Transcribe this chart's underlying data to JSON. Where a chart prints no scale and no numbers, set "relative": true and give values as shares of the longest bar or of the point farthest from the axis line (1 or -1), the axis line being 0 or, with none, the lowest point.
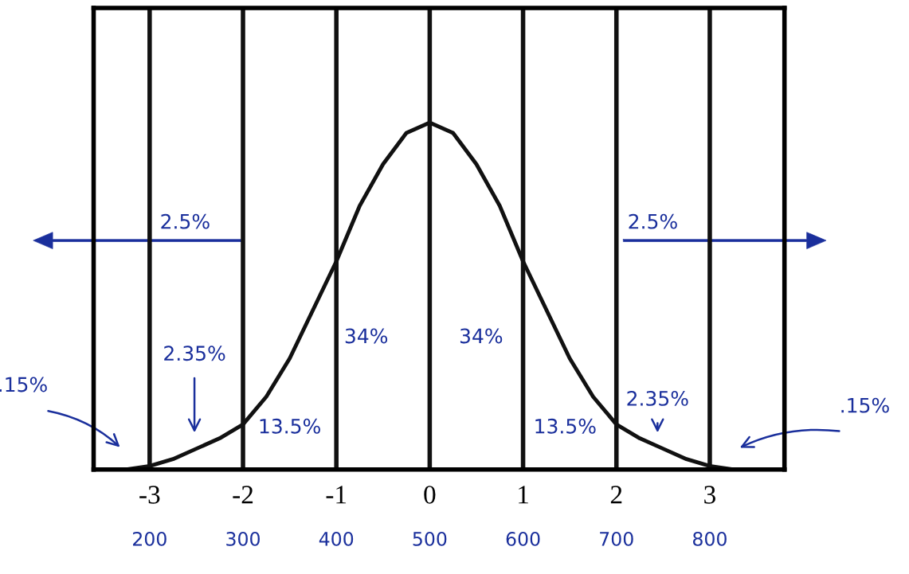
{
  "chart_data": {
    "type": "line",
    "relative": true,
    "x": [
      -3.5,
      -3.25,
      -3,
      -2.75,
      -2.5,
      -2.25,
      -2,
      -1.75,
      -1.5,
      -1.25,
      -1,
      -0.75,
      -0.5,
      -0.25,
      0,
      0.25,
      0.5,
      0.75,
      1,
      1.25,
      1.5,
      1.75,
      2,
      2.25,
      2.5,
      2.75,
      3,
      3.25,
      3.5
    ],
    "series": [
      {
        "color": "#111111",
        "values": [
          0,
          0,
          0.01,
          0.03,
          0.06,
          0.09,
          0.13,
          0.21,
          0.32,
          0.46,
          0.6,
          0.76,
          0.88,
          0.97,
          1,
          0.97,
          0.88,
          0.76,
          0.6,
          0.46,
          0.32,
          0.21,
          0.13,
          0.09,
          0.06,
          0.03,
          0.01,
          0,
          0
        ]
      }
    ],
    "xlim": [
      -3.6,
      3.8
    ],
    "xticks": [
      -3,
      -2,
      -1,
      0,
      1,
      2,
      3
    ],
    "x2lim": [
      140,
      880
    ],
    "x2ticks": [
      200,
      300,
      400,
      500,
      600,
      700,
      800
    ],
    "tick_labels": "x",
    "ref_lines": [
      {
        "axis": "x",
        "value": -3,
        "color": "#111111"
      },
      {
        "axis": "x",
        "value": -2,
        "color": "#111111"
      },
      {
        "axis": "x",
        "value": -1,
        "color": "#111111"
      },
      {
        "axis": "x",
        "value": 0,
        "color": "#111111"
      },
      {
        "axis": "x",
        "value": 1,
        "color": "#111111"
      },
      {
        "axis": "x",
        "value": 2,
        "color": "#111111"
      },
      {
        "axis": "x",
        "value": 3,
        "color": "#111111"
      }
    ],
    "annotations": [
      "2.5%",
      "2.5%",
      "34%",
      "34%",
      "2.35%",
      "2.35%",
      "13.5%",
      "13.5%",
      ".15%",
      ".15%"
    ]
  }
}
